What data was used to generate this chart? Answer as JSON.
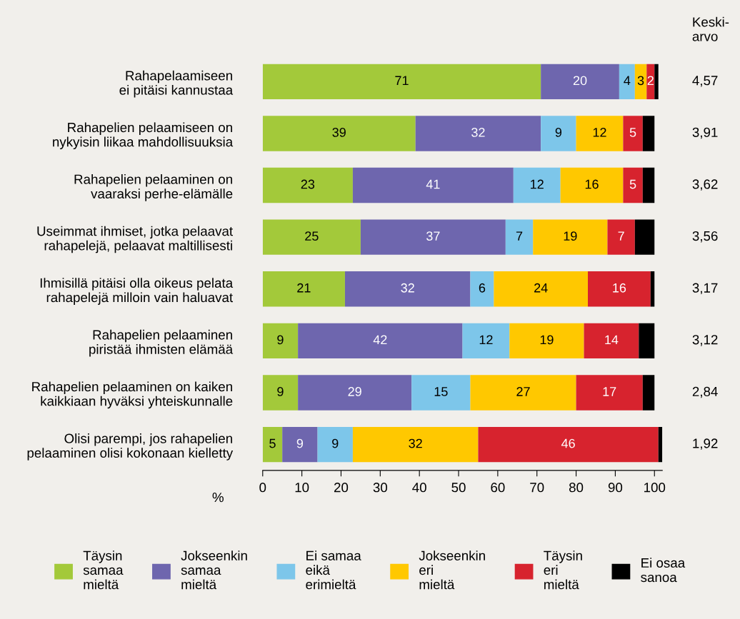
{
  "chart_data": {
    "type": "bar",
    "orientation": "horizontal",
    "stacked": true,
    "categories": [
      "Rahapelaamiseen\nei pitäisi kannustaa",
      "Rahapelien pelaamiseen on\nnykyisin liikaa mahdollisuuksia",
      "Rahapelien pelaaminen on\nvaaraksi perhe-elämälle",
      "Useimmat ihmiset, jotka pelaavat\nrahapelejä, pelaavat maltillisesti",
      "Ihmisillä pitäisi olla oikeus pelata\nrahapelejä milloin vain haluavat",
      "Rahapelien pelaaminen\npiristää ihmisten elämää",
      "Rahapelien pelaaminen on kaiken\nkaikkiaan hyväksi yhteiskunnalle",
      "Olisi parempi, jos rahapelien\npelaaminen olisi kokonaan kielletty"
    ],
    "series": [
      {
        "name": "Täysin\nsamaa\nmieltä",
        "color": "#a3c93a",
        "values": [
          71,
          39,
          23,
          25,
          21,
          9,
          9,
          5
        ],
        "value_labels": [
          "71",
          "39",
          "23",
          "25",
          "21",
          "9",
          "9",
          "5"
        ]
      },
      {
        "name": "Jokseenkin\nsamaa\nmieltä",
        "color": "#6e66ae",
        "values": [
          20,
          32,
          41,
          37,
          32,
          42,
          29,
          9
        ],
        "value_labels": [
          "20",
          "32",
          "41",
          "37",
          "32",
          "42",
          "29",
          "9"
        ]
      },
      {
        "name": "Ei samaa\neikä\nerimieltä",
        "color": "#7dc6ea",
        "values": [
          4,
          9,
          12,
          7,
          6,
          12,
          15,
          9
        ],
        "value_labels": [
          "4",
          "9",
          "12",
          "7",
          "6",
          "12",
          "15",
          "9"
        ]
      },
      {
        "name": "Jokseenkin\neri\nmieltä",
        "color": "#ffc800",
        "values": [
          3,
          12,
          16,
          19,
          24,
          19,
          27,
          32
        ],
        "value_labels": [
          "3",
          "12",
          "16",
          "19",
          "24",
          "19",
          "27",
          "32"
        ]
      },
      {
        "name": "Täysin\neri\nmieltä",
        "color": "#d7232e",
        "values": [
          2,
          5,
          5,
          7,
          16,
          14,
          17,
          46
        ],
        "value_labels": [
          "2",
          "5",
          "5",
          "7",
          "16",
          "14",
          "17",
          "46"
        ]
      },
      {
        "name": "Ei osaa\nsanoa",
        "color": "#000000",
        "values": [
          1,
          3,
          3,
          5,
          1,
          4,
          3,
          1
        ],
        "value_labels": [
          null,
          null,
          null,
          null,
          null,
          null,
          null,
          null
        ]
      }
    ],
    "xlabel": "%",
    "xlim": [
      0,
      102
    ],
    "xticks": [
      0,
      10,
      20,
      30,
      40,
      50,
      60,
      70,
      80,
      90,
      100
    ],
    "annotations": [
      "Keski-\narvo",
      "4,57",
      "3,91",
      "3,62",
      "3,56",
      "3,17",
      "3,12",
      "2,84",
      "1,92"
    ],
    "legend": "bottom",
    "grid": false
  }
}
